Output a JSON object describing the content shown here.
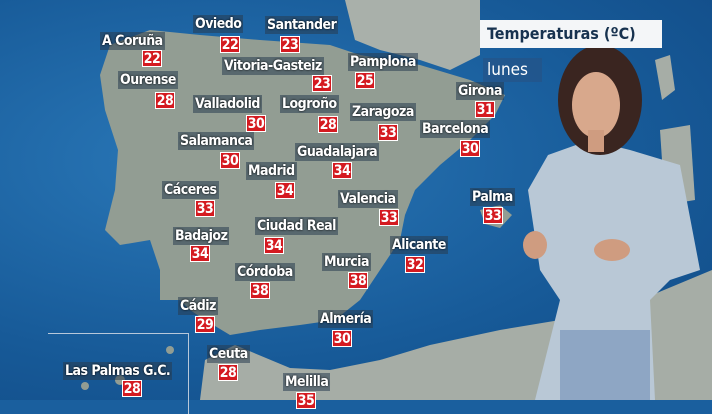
{
  "header": {
    "title": "Temperaturas (ºC)",
    "day": "lunes"
  },
  "cities": [
    {
      "name": "A Coruña",
      "temp": "22"
    },
    {
      "name": "Oviedo",
      "temp": "22"
    },
    {
      "name": "Santander",
      "temp": "23"
    },
    {
      "name": "Vitoria-Gasteiz",
      "temp": "23"
    },
    {
      "name": "Pamplona",
      "temp": "25"
    },
    {
      "name": "Ourense",
      "temp": "28"
    },
    {
      "name": "Valladolid",
      "temp": "30"
    },
    {
      "name": "Logroño",
      "temp": "28"
    },
    {
      "name": "Zaragoza",
      "temp": "33"
    },
    {
      "name": "Girona",
      "temp": "31"
    },
    {
      "name": "Barcelona",
      "temp": "30"
    },
    {
      "name": "Salamanca",
      "temp": "30"
    },
    {
      "name": "Guadalajara",
      "temp": "34"
    },
    {
      "name": "Madrid",
      "temp": "34"
    },
    {
      "name": "Cáceres",
      "temp": "33"
    },
    {
      "name": "Valencia",
      "temp": "33"
    },
    {
      "name": "Palma",
      "temp": "33"
    },
    {
      "name": "Badajoz",
      "temp": "34"
    },
    {
      "name": "Ciudad Real",
      "temp": "34"
    },
    {
      "name": "Alicante",
      "temp": "32"
    },
    {
      "name": "Córdoba",
      "temp": "38"
    },
    {
      "name": "Murcia",
      "temp": "38"
    },
    {
      "name": "Cádiz",
      "temp": "29"
    },
    {
      "name": "Almería",
      "temp": "30"
    },
    {
      "name": "Ceuta",
      "temp": "28"
    },
    {
      "name": "Las Palmas G.C.",
      "temp": "28"
    },
    {
      "name": "Melilla",
      "temp": "35"
    }
  ],
  "colors": {
    "sea": "#1a5f9e",
    "land": "#9aa39a",
    "temp_box": "#d41a20",
    "title_bg": "#f4f6f8"
  }
}
